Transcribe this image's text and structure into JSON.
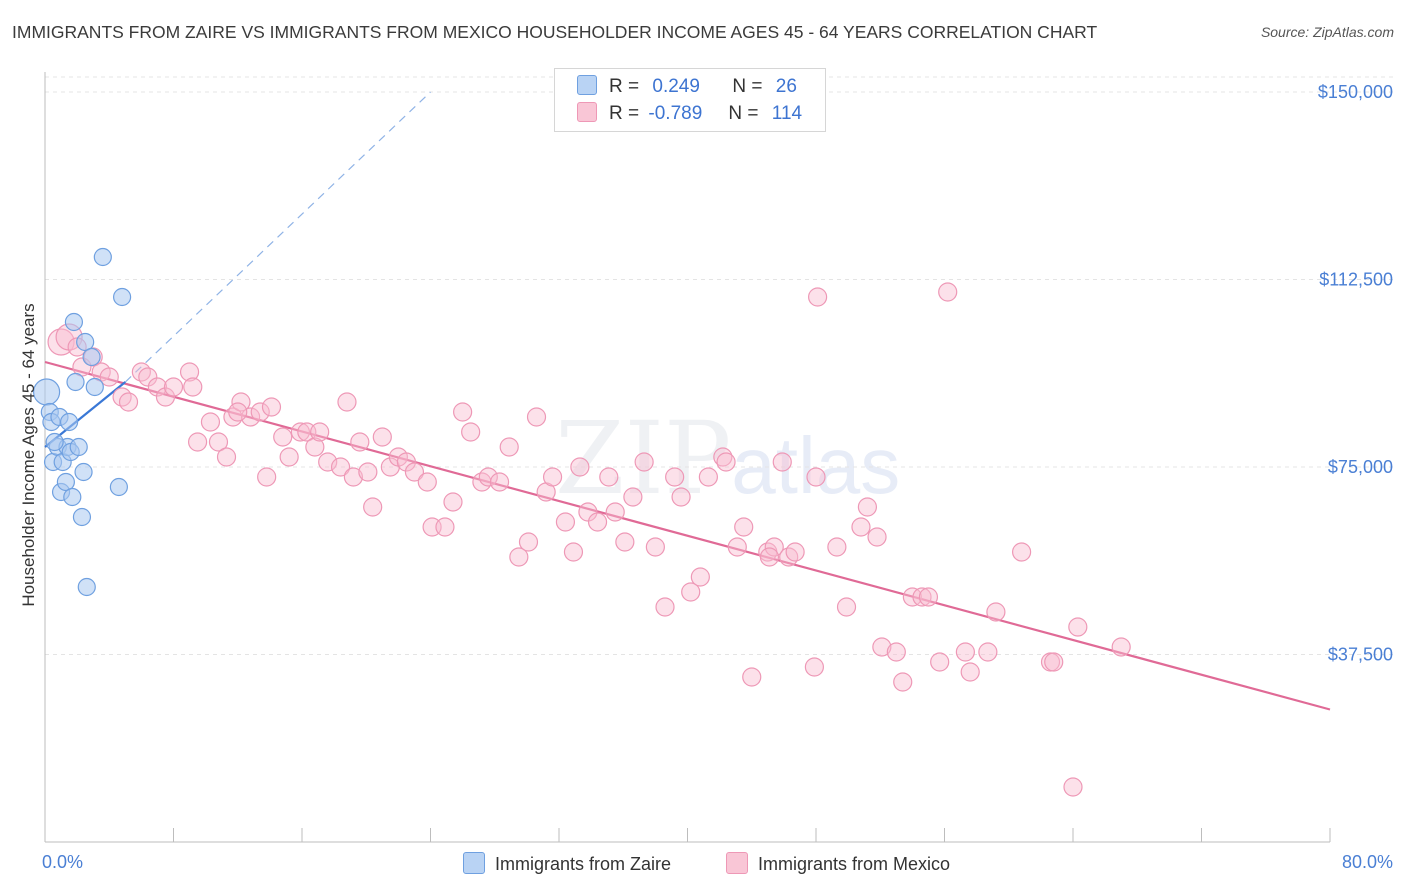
{
  "header": {
    "title": "IMMIGRANTS FROM ZAIRE VS IMMIGRANTS FROM MEXICO HOUSEHOLDER INCOME AGES 45 - 64 YEARS CORRELATION CHART",
    "source": "Source: ZipAtlas.com"
  },
  "watermark": {
    "zip": "ZIP",
    "atlas": "atlas"
  },
  "legend": {
    "zaire": {
      "r_label": "R =",
      "r_value": "0.249",
      "n_label": "N =",
      "n_value": "26"
    },
    "mexico": {
      "r_label": "R =",
      "r_value": "-0.789",
      "n_label": "N =",
      "n_value": "114"
    }
  },
  "bottom_legend": {
    "zaire": "Immigrants from Zaire",
    "mexico": "Immigrants from Mexico"
  },
  "colors": {
    "zaire_fill": "#aac8f0",
    "zaire_stroke": "#6fa0e0",
    "zaire_line": "#3a78d6",
    "mexico_fill": "#f8bcd0",
    "mexico_stroke": "#ee98b6",
    "mexico_line": "#e06a96",
    "tick_text": "#4a7fd4",
    "grid": "#e4e4e4"
  },
  "chart_data": {
    "type": "scatter",
    "title": "IMMIGRANTS FROM ZAIRE VS IMMIGRANTS FROM MEXICO HOUSEHOLDER INCOME AGES 45 - 64 YEARS CORRELATION CHART",
    "xlabel": "",
    "ylabel": "Householder Income Ages 45 - 64 years",
    "xlim": [
      0,
      80
    ],
    "ylim": [
      0,
      154000
    ],
    "x_tick_labels": [
      "0.0%",
      "80.0%"
    ],
    "y_ticks": [
      37500,
      75000,
      112500,
      150000
    ],
    "y_tick_labels": [
      "$37,500",
      "$75,000",
      "$112,500",
      "$150,000"
    ],
    "series": [
      {
        "name": "Immigrants from Zaire",
        "points": [
          [
            0.1,
            90000
          ],
          [
            0.3,
            86000
          ],
          [
            0.4,
            84000
          ],
          [
            0.5,
            76000
          ],
          [
            0.8,
            79000
          ],
          [
            0.9,
            85000
          ],
          [
            1.0,
            70000
          ],
          [
            1.1,
            76000
          ],
          [
            1.3,
            72000
          ],
          [
            1.4,
            79000
          ],
          [
            1.5,
            84000
          ],
          [
            1.6,
            78000
          ],
          [
            1.7,
            69000
          ],
          [
            1.8,
            104000
          ],
          [
            1.9,
            92000
          ],
          [
            2.1,
            79000
          ],
          [
            2.3,
            65000
          ],
          [
            2.4,
            74000
          ],
          [
            2.5,
            100000
          ],
          [
            2.6,
            51000
          ],
          [
            2.9,
            97000
          ],
          [
            3.1,
            91000
          ],
          [
            3.6,
            117000
          ],
          [
            4.6,
            71000
          ],
          [
            4.8,
            109000
          ],
          [
            0.6,
            80000
          ]
        ],
        "trend": {
          "x": [
            0,
            5
          ],
          "y": [
            79000,
            92000
          ]
        },
        "trend_ext": {
          "x": [
            5,
            24
          ],
          "y": [
            92000,
            150000
          ]
        }
      },
      {
        "name": "Immigrants from Mexico",
        "points": [
          [
            1,
            100000
          ],
          [
            1.5,
            101000
          ],
          [
            2,
            99000
          ],
          [
            2.3,
            95000
          ],
          [
            3,
            97000
          ],
          [
            3.5,
            94000
          ],
          [
            4,
            93000
          ],
          [
            4.8,
            89000
          ],
          [
            5.2,
            88000
          ],
          [
            6,
            94000
          ],
          [
            6.4,
            93000
          ],
          [
            7.0,
            91000
          ],
          [
            7.5,
            89000
          ],
          [
            8,
            91000
          ],
          [
            9,
            94000
          ],
          [
            9.2,
            91000
          ],
          [
            9.5,
            80000
          ],
          [
            10.3,
            84000
          ],
          [
            10.8,
            80000
          ],
          [
            11.3,
            77000
          ],
          [
            11.7,
            85000
          ],
          [
            12.2,
            88000
          ],
          [
            12.8,
            85000
          ],
          [
            13.4,
            86000
          ],
          [
            13.8,
            73000
          ],
          [
            14.1,
            87000
          ],
          [
            14.8,
            81000
          ],
          [
            15.2,
            77000
          ],
          [
            15.9,
            82000
          ],
          [
            16.3,
            82000
          ],
          [
            16.8,
            79000
          ],
          [
            17.1,
            82000
          ],
          [
            17.6,
            76000
          ],
          [
            18.4,
            75000
          ],
          [
            18.8,
            88000
          ],
          [
            19.2,
            73000
          ],
          [
            19.6,
            80000
          ],
          [
            20.1,
            74000
          ],
          [
            20.4,
            67000
          ],
          [
            21.0,
            81000
          ],
          [
            21.5,
            75000
          ],
          [
            22.0,
            77000
          ],
          [
            22.5,
            76000
          ],
          [
            23.0,
            74000
          ],
          [
            23.8,
            72000
          ],
          [
            24.1,
            63000
          ],
          [
            24.9,
            63000
          ],
          [
            25.4,
            68000
          ],
          [
            26,
            86000
          ],
          [
            26.5,
            82000
          ],
          [
            27.2,
            72000
          ],
          [
            27.6,
            73000
          ],
          [
            28.3,
            72000
          ],
          [
            28.9,
            79000
          ],
          [
            29.5,
            57000
          ],
          [
            30.1,
            60000
          ],
          [
            30.6,
            85000
          ],
          [
            31.2,
            70000
          ],
          [
            31.6,
            73000
          ],
          [
            32.4,
            64000
          ],
          [
            32.9,
            58000
          ],
          [
            33.3,
            75000
          ],
          [
            33.8,
            66000
          ],
          [
            34.4,
            64000
          ],
          [
            35.1,
            73000
          ],
          [
            35.5,
            66000
          ],
          [
            36.1,
            60000
          ],
          [
            36.6,
            69000
          ],
          [
            37.3,
            76000
          ],
          [
            38.0,
            59000
          ],
          [
            38.6,
            47000
          ],
          [
            39.2,
            73000
          ],
          [
            39.6,
            69000
          ],
          [
            40.2,
            50000
          ],
          [
            40.8,
            53000
          ],
          [
            41.3,
            73000
          ],
          [
            42.2,
            77000
          ],
          [
            42.4,
            76000
          ],
          [
            43.1,
            59000
          ],
          [
            43.5,
            63000
          ],
          [
            44.0,
            33000
          ],
          [
            45.0,
            58000
          ],
          [
            45.4,
            59000
          ],
          [
            45.9,
            76000
          ],
          [
            46.3,
            57000
          ],
          [
            46.7,
            58000
          ],
          [
            47.9,
            35000
          ],
          [
            48.0,
            73000
          ],
          [
            48.1,
            109000
          ],
          [
            49.3,
            59000
          ],
          [
            49.9,
            47000
          ],
          [
            50.8,
            63000
          ],
          [
            51.2,
            67000
          ],
          [
            51.8,
            61000
          ],
          [
            52.1,
            39000
          ],
          [
            53.0,
            38000
          ],
          [
            53.4,
            32000
          ],
          [
            54.0,
            49000
          ],
          [
            54.6,
            49000
          ],
          [
            55.7,
            36000
          ],
          [
            56.2,
            110000
          ],
          [
            57.3,
            38000
          ],
          [
            57.6,
            34000
          ],
          [
            58.7,
            38000
          ],
          [
            59.2,
            46000
          ],
          [
            60.8,
            58000
          ],
          [
            62.6,
            36000
          ],
          [
            64.3,
            43000
          ],
          [
            67.0,
            39000
          ],
          [
            62.8,
            36000
          ],
          [
            45.1,
            57000
          ],
          [
            55.0,
            49000
          ],
          [
            64.0,
            11000
          ],
          [
            12.0,
            86000
          ]
        ],
        "trend": {
          "x": [
            0,
            80
          ],
          "y": [
            96000,
            26500
          ]
        }
      }
    ],
    "legend_position": "top-center",
    "grid": true
  }
}
